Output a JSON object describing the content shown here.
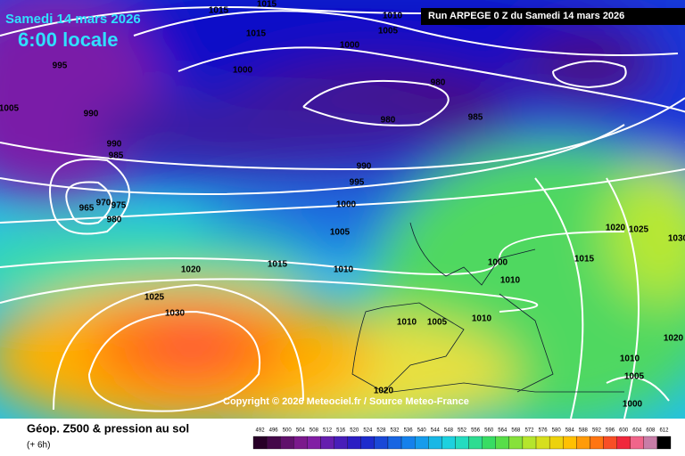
{
  "header": {
    "date": "Samedi 14 mars 2026",
    "time": "6:00 locale",
    "run": "Run ARPEGE 0 Z du Samedi 14 mars 2026"
  },
  "isobar_labels": [
    "1015",
    "1015",
    "1015",
    "1010",
    "1005",
    "1000",
    "1000",
    "995",
    "1005",
    "990",
    "990",
    "985",
    "980",
    "980",
    "985",
    "990",
    "995",
    "1000",
    "965",
    "970",
    "975",
    "980",
    "1005",
    "1020",
    "1015",
    "1010",
    "1025",
    "1030",
    "1000",
    "1015",
    "1010",
    "1020",
    "1025",
    "1030",
    "1010",
    "1005",
    "1010",
    "1020",
    "1010",
    "1005",
    "1000",
    "1020"
  ],
  "copyright": "Copyright © 2026 Meteociel.fr / Source Meteo-France",
  "footer": {
    "title": "Géop. Z500 & pression au sol",
    "subtitle": "(+ 6h)"
  },
  "colorbar": {
    "ticks": [
      492,
      496,
      500,
      504,
      508,
      512,
      516,
      520,
      524,
      528,
      532,
      536,
      540,
      544,
      548,
      552,
      556,
      560,
      564,
      568,
      572,
      576,
      580,
      584,
      588,
      592,
      596,
      600,
      604,
      608,
      612
    ]
  }
}
